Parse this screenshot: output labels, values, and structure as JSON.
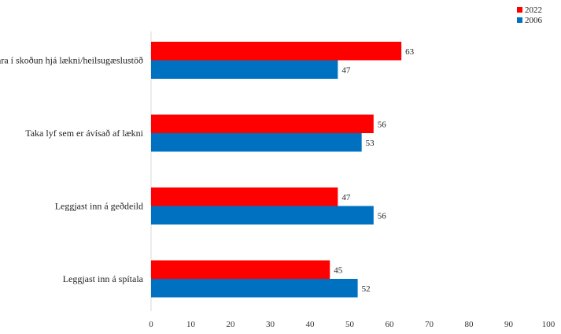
{
  "chart_data": {
    "type": "bar",
    "orientation": "horizontal",
    "categories": [
      "Fara í skoðun hjá lækni/heilsugæslustöð",
      "Taka lyf sem er ávísað af lækni",
      "Leggjast inn á geðdeild",
      "Leggjast inn á spítala"
    ],
    "series": [
      {
        "name": "2022",
        "color": "#ff0000",
        "values": [
          63,
          56,
          47,
          45
        ]
      },
      {
        "name": "2006",
        "color": "#0070c0",
        "values": [
          47,
          53,
          56,
          52
        ]
      }
    ],
    "xlim": [
      0,
      100
    ],
    "xticks": [
      0,
      10,
      20,
      30,
      40,
      50,
      60,
      70,
      80,
      90,
      100
    ],
    "title": "",
    "xlabel": "",
    "ylabel": "",
    "grid": false,
    "legend_position": "top-right",
    "data_labels": true
  }
}
